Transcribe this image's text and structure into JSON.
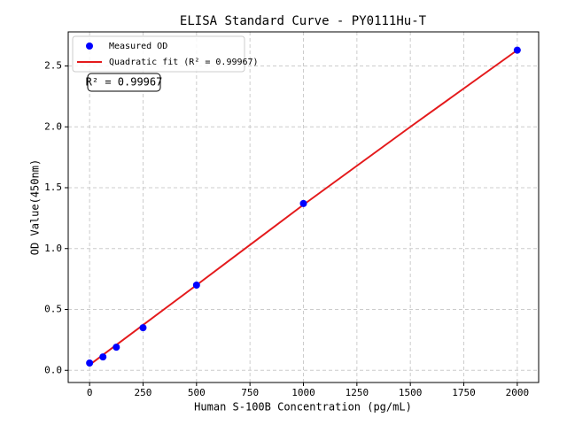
{
  "chart_data": {
    "type": "scatter",
    "title": "ELISA Standard Curve - PY0111Hu-T",
    "x_label": "Human S-100B Concentration (pg/mL)",
    "y_label": "OD Value(450nm)",
    "annotation": "R² = 0.99967",
    "xlim": [
      -100,
      2100
    ],
    "ylim": [
      -0.1,
      2.78
    ],
    "xticks": [
      0,
      250,
      500,
      750,
      1000,
      1250,
      1500,
      1750,
      2000
    ],
    "yticks": [
      {
        "value": 0,
        "label": "0.0"
      },
      0.5,
      {
        "value": 1,
        "label": "1.0"
      },
      1.5,
      {
        "value": 2,
        "label": "2.0"
      },
      2.5
    ],
    "grid": true,
    "legend": "upper-left",
    "series": [
      {
        "name": "Measured OD",
        "mode": "markers",
        "color": "#0000ff",
        "x": [
          0,
          62.5,
          125,
          250,
          500,
          1000,
          2000
        ],
        "values": [
          0.06,
          0.11,
          0.19,
          0.35,
          0.7,
          1.37,
          2.63
        ]
      },
      {
        "name": "Quadratic fit (R² = 0.99967)",
        "mode": "line",
        "color": "#e41a1c",
        "x": [
          0,
          500,
          1000,
          1500,
          2000
        ],
        "values": [
          0.045,
          0.7,
          1.36,
          2.0,
          2.63
        ]
      }
    ]
  }
}
